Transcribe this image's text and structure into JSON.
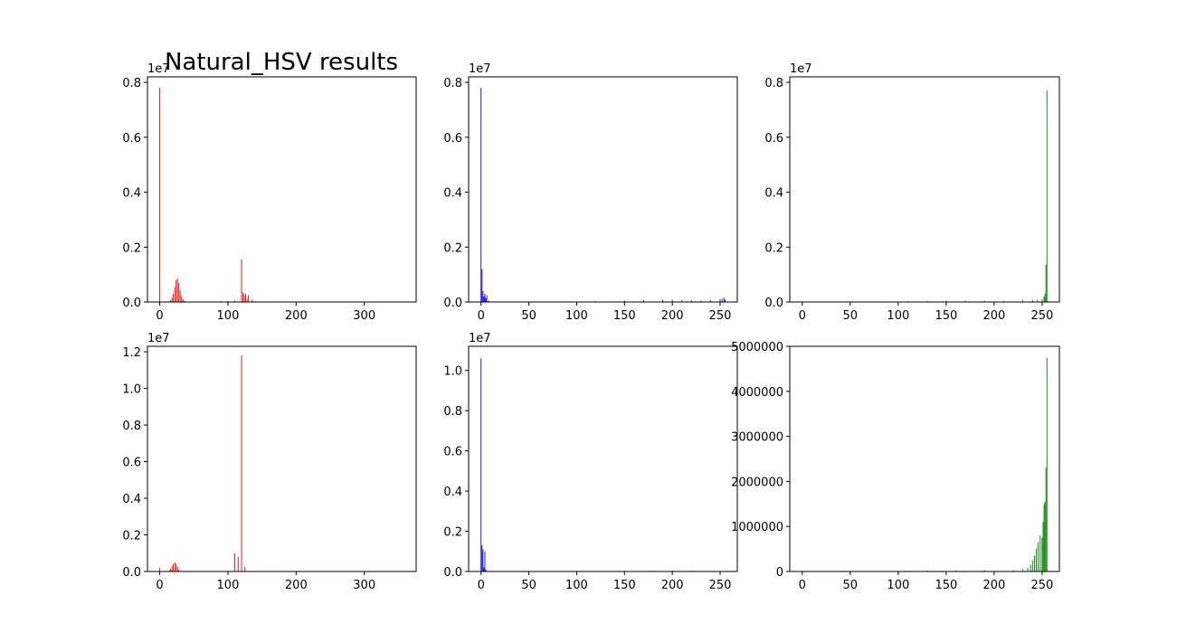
{
  "figure": {
    "suptitle": "Natural_HSV results",
    "background": "#ffffff"
  },
  "chart_data": [
    {
      "type": "bar",
      "title": "",
      "color": "#ff0000",
      "offset_text": "1e7",
      "xlim": [
        -18,
        376
      ],
      "ylim": [
        0,
        8200000
      ],
      "xticks": [
        0,
        100,
        200,
        300
      ],
      "yticks": [
        0,
        2000000,
        4000000,
        6000000,
        8000000
      ],
      "ytick_labels": [
        "0.0",
        "0.2",
        "0.4",
        "0.6",
        "0.8"
      ],
      "series": [
        {
          "x": [
            0,
            14,
            16,
            18,
            20,
            22,
            24,
            26,
            28,
            30,
            32,
            34,
            36,
            90,
            100,
            110,
            120,
            122,
            124,
            126,
            128,
            130,
            135,
            140
          ],
          "values": [
            7800000,
            20000,
            70000,
            150000,
            300000,
            550000,
            800000,
            850000,
            700000,
            420000,
            220000,
            100000,
            40000,
            30000,
            40000,
            60000,
            1550000,
            350000,
            250000,
            300000,
            120000,
            250000,
            100000,
            30000
          ]
        }
      ]
    },
    {
      "type": "bar",
      "title": "",
      "color": "#0000ff",
      "offset_text": "1e7",
      "xlim": [
        -13,
        268
      ],
      "ylim": [
        0,
        8200000
      ],
      "xticks": [
        0,
        50,
        100,
        150,
        200,
        250
      ],
      "yticks": [
        0,
        2000000,
        4000000,
        6000000,
        8000000
      ],
      "ytick_labels": [
        "0.0",
        "0.2",
        "0.4",
        "0.6",
        "0.8"
      ],
      "series": [
        {
          "x": [
            0,
            1,
            2,
            3,
            4,
            5,
            6,
            8,
            120,
            150,
            170,
            190,
            200,
            210,
            220,
            230,
            240,
            250,
            252,
            254,
            255
          ],
          "values": [
            7800000,
            1200000,
            400000,
            200000,
            300000,
            150000,
            250000,
            50000,
            30000,
            50000,
            70000,
            80000,
            80000,
            70000,
            60000,
            50000,
            60000,
            100000,
            120000,
            150000,
            100000
          ]
        }
      ]
    },
    {
      "type": "bar",
      "title": "",
      "color": "#008000",
      "offset_text": "1e7",
      "xlim": [
        -13,
        268
      ],
      "ylim": [
        0,
        8200000
      ],
      "xticks": [
        0,
        50,
        100,
        150,
        200,
        250
      ],
      "yticks": [
        0,
        2000000,
        4000000,
        6000000,
        8000000
      ],
      "ytick_labels": [
        "0.0",
        "0.2",
        "0.4",
        "0.6",
        "0.8"
      ],
      "series": [
        {
          "x": [
            90,
            110,
            130,
            150,
            170,
            190,
            210,
            230,
            240,
            245,
            250,
            252,
            253,
            254,
            255
          ],
          "values": [
            20000,
            30000,
            40000,
            50000,
            60000,
            50000,
            50000,
            60000,
            70000,
            80000,
            100000,
            200000,
            300000,
            1350000,
            7700000
          ]
        }
      ]
    },
    {
      "type": "bar",
      "title": "",
      "color": "#ff0000",
      "offset_text": "1e7",
      "xlim": [
        -18,
        376
      ],
      "ylim": [
        0,
        12300000
      ],
      "xticks": [
        0,
        100,
        200,
        300
      ],
      "yticks": [
        0,
        2000000,
        4000000,
        6000000,
        8000000,
        10000000,
        12000000
      ],
      "ytick_labels": [
        "0.0",
        "0.2",
        "0.4",
        "0.6",
        "0.8",
        "1.0",
        "1.2"
      ],
      "series": [
        {
          "x": [
            0,
            12,
            14,
            16,
            18,
            20,
            22,
            24,
            26,
            28,
            30,
            110,
            115,
            120,
            125,
            165
          ],
          "values": [
            200000,
            20000,
            60000,
            150000,
            280000,
            420000,
            500000,
            420000,
            250000,
            100000,
            30000,
            1000000,
            800000,
            11800000,
            250000,
            30000
          ]
        }
      ]
    },
    {
      "type": "bar",
      "title": "",
      "color": "#0000ff",
      "offset_text": "1e7",
      "xlim": [
        -13,
        268
      ],
      "ylim": [
        0,
        11200000
      ],
      "xticks": [
        0,
        50,
        100,
        150,
        200,
        250
      ],
      "yticks": [
        0,
        2000000,
        4000000,
        6000000,
        8000000,
        10000000
      ],
      "ytick_labels": [
        "0.0",
        "0.2",
        "0.4",
        "0.6",
        "0.8",
        "1.0"
      ],
      "series": [
        {
          "x": [
            0,
            1,
            2,
            3,
            4,
            5,
            150,
            180,
            200,
            220,
            240
          ],
          "values": [
            10600000,
            1300000,
            1100000,
            200000,
            1000000,
            100000,
            20000,
            30000,
            40000,
            30000,
            20000
          ]
        }
      ]
    },
    {
      "type": "bar",
      "title": "",
      "color": "#008000",
      "offset_text": "",
      "xlim": [
        -13,
        268
      ],
      "ylim": [
        0,
        5000000
      ],
      "xticks": [
        0,
        50,
        100,
        150,
        200,
        250
      ],
      "yticks": [
        0,
        1000000,
        2000000,
        3000000,
        4000000,
        5000000
      ],
      "ytick_labels": [
        "0",
        "1000000",
        "2000000",
        "3000000",
        "4000000",
        "5000000"
      ],
      "series": [
        {
          "x": [
            100,
            130,
            160,
            190,
            220,
            230,
            235,
            238,
            240,
            242,
            244,
            246,
            248,
            250,
            251,
            252,
            253,
            254,
            255
          ],
          "values": [
            10000,
            20000,
            25000,
            30000,
            30000,
            50000,
            80000,
            150000,
            250000,
            350000,
            500000,
            650000,
            800000,
            750000,
            1100000,
            1500000,
            1550000,
            2300000,
            4750000
          ]
        }
      ]
    }
  ]
}
